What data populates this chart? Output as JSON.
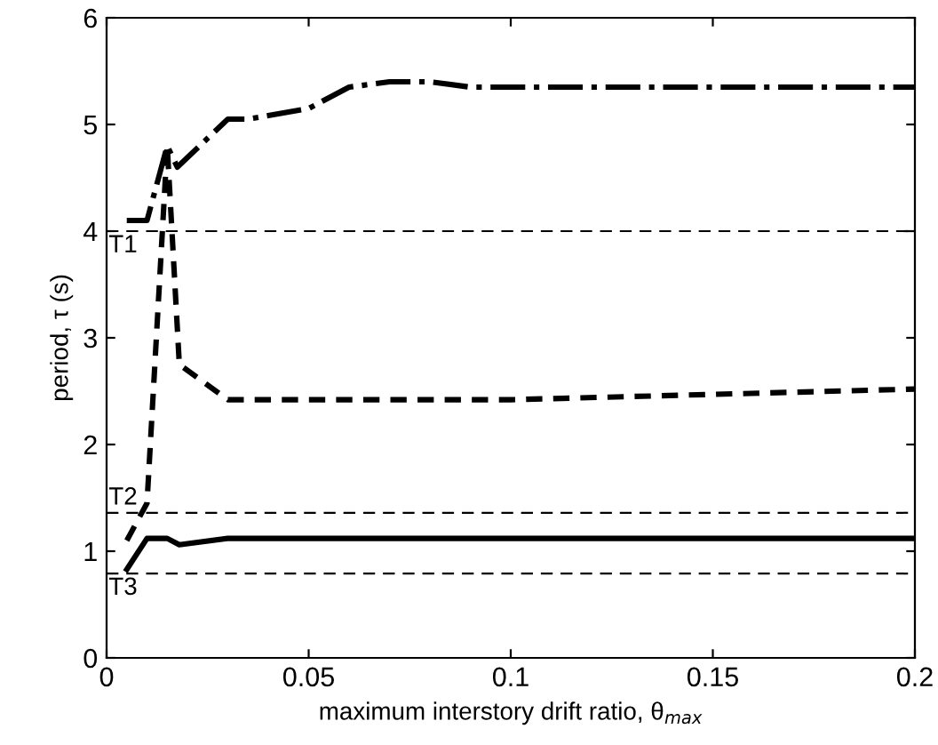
{
  "chart_data": {
    "type": "line",
    "xlabel": "maximum interstory drift ratio, θ$_{max}$",
    "ylabel": "period, τ (s)",
    "xlim": [
      0,
      0.2
    ],
    "ylim": [
      0,
      6
    ],
    "xticks": [
      0,
      0.05,
      0.1,
      0.15,
      0.2
    ],
    "yticks": [
      0,
      1,
      2,
      3,
      4,
      5,
      6
    ],
    "grid": false,
    "marker": "none",
    "series": [
      {
        "color": "#000000",
        "line_style": "dashdot",
        "x": [
          0.005,
          0.01,
          0.015,
          0.0175,
          0.03,
          0.035,
          0.05,
          0.06,
          0.07,
          0.08,
          0.09,
          0.2
        ],
        "values": [
          4.1,
          4.1,
          4.8,
          4.6,
          5.05,
          5.05,
          5.15,
          5.35,
          5.4,
          5.4,
          5.35,
          5.35
        ]
      },
      {
        "color": "#000000",
        "line_style": "dashed",
        "x": [
          0.005,
          0.01,
          0.015,
          0.018,
          0.03,
          0.1,
          0.2
        ],
        "values": [
          1.1,
          1.45,
          4.8,
          2.75,
          2.42,
          2.42,
          2.52
        ]
      },
      {
        "color": "#000000",
        "line_style": "solid",
        "x": [
          0.005,
          0.01,
          0.015,
          0.018,
          0.03,
          0.2
        ],
        "values": [
          0.83,
          1.12,
          1.12,
          1.06,
          1.12,
          1.12
        ]
      }
    ],
    "ref_lines": [
      {
        "axis": "y",
        "value": 4.0,
        "label": "T1",
        "color": "#000000",
        "line_style": "dashed"
      },
      {
        "axis": "y",
        "value": 1.36,
        "label": "T2",
        "color": "#000000",
        "line_style": "dashed"
      },
      {
        "axis": "y",
        "value": 0.79,
        "label": "T3",
        "color": "#000000",
        "line_style": "dashed"
      }
    ]
  }
}
